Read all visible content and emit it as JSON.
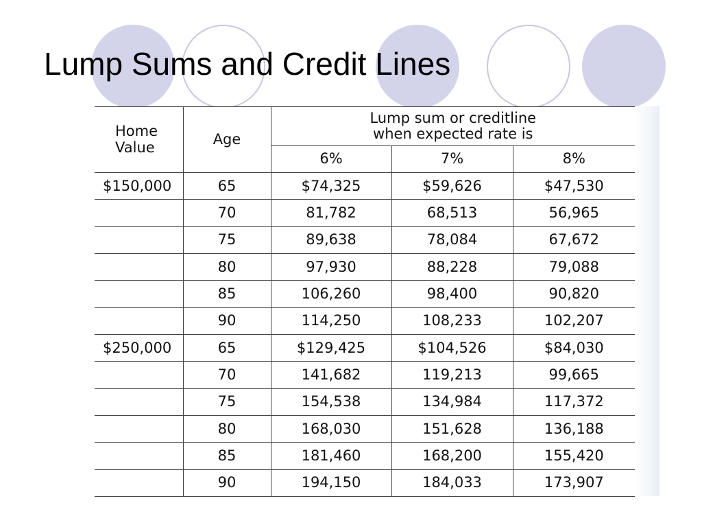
{
  "slide": {
    "title": "Lump Sums and Credit Lines"
  },
  "table": {
    "header": {
      "home_value_line1": "Home",
      "home_value_line2": "Value",
      "age": "Age",
      "span_line1": "Lump sum or creditline",
      "span_line2": "when expected rate is",
      "rates": [
        "6%",
        "7%",
        "8%"
      ]
    },
    "rows": [
      {
        "home_value": "$150,000",
        "age": "65",
        "r6": "$74,325",
        "r7": "$59,626",
        "r8": "$47,530"
      },
      {
        "home_value": "",
        "age": "70",
        "r6": "81,782",
        "r7": "68,513",
        "r8": "56,965"
      },
      {
        "home_value": "",
        "age": "75",
        "r6": "89,638",
        "r7": "78,084",
        "r8": "67,672"
      },
      {
        "home_value": "",
        "age": "80",
        "r6": "97,930",
        "r7": "88,228",
        "r8": "79,088"
      },
      {
        "home_value": "",
        "age": "85",
        "r6": "106,260",
        "r7": "98,400",
        "r8": "90,820"
      },
      {
        "home_value": "",
        "age": "90",
        "r6": "114,250",
        "r7": "108,233",
        "r8": "102,207"
      },
      {
        "home_value": "$250,000",
        "age": "65",
        "r6": "$129,425",
        "r7": "$104,526",
        "r8": "$84,030"
      },
      {
        "home_value": "",
        "age": "70",
        "r6": "141,682",
        "r7": "119,213",
        "r8": "99,665"
      },
      {
        "home_value": "",
        "age": "75",
        "r6": "154,538",
        "r7": "134,984",
        "r8": "117,372"
      },
      {
        "home_value": "",
        "age": "80",
        "r6": "168,030",
        "r7": "151,628",
        "r8": "136,188"
      },
      {
        "home_value": "",
        "age": "85",
        "r6": "181,460",
        "r7": "168,200",
        "r8": "155,420"
      },
      {
        "home_value": "",
        "age": "90",
        "r6": "194,150",
        "r7": "184,033",
        "r8": "173,907"
      }
    ]
  },
  "theme": {
    "circle_fill": "#d3d3ea",
    "circle_outline": "#c8c8e4",
    "rule_color": "#444444"
  }
}
